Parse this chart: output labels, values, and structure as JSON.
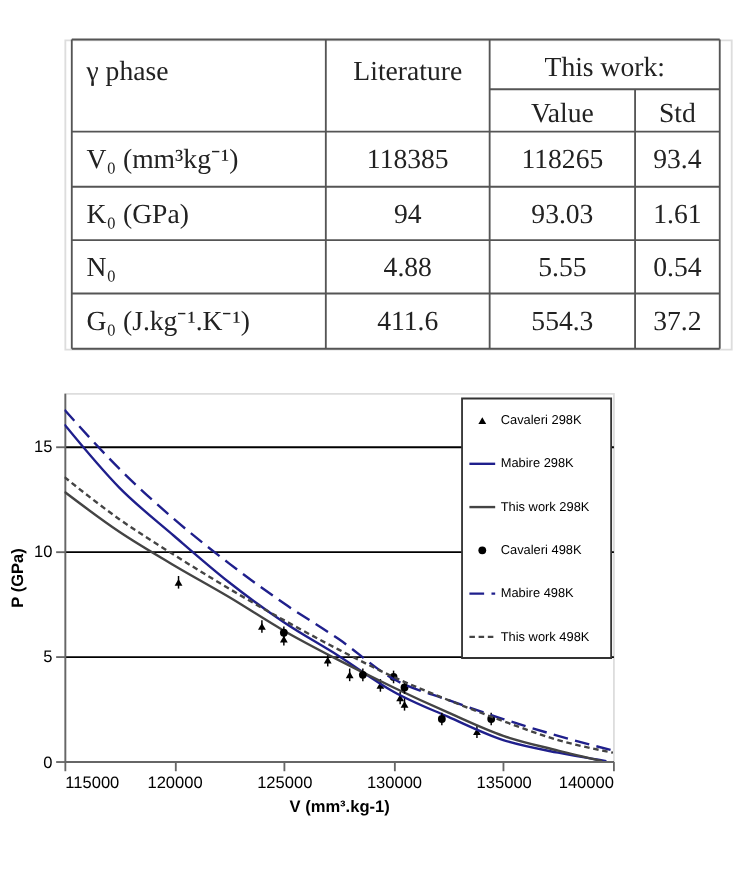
{
  "chart_data": [
    {
      "type": "other",
      "annotations": [
        "γ phase",
        "Literature",
        "This work:",
        "Value",
        "Std",
        "V₀ (mm³kg⁻¹)",
        "118385",
        "118265",
        "93.4",
        "K₀ (GPa)",
        "94",
        "93.03",
        "1.61",
        "N₀",
        "4.88",
        "5.55",
        "0.54",
        "G₀ (J.kg⁻¹.K⁻¹)",
        "411.6",
        "554.3",
        "37.2"
      ]
    },
    {
      "type": "line",
      "xlabel": "V (mm³.kg-1)",
      "ylabel": "P (GPa)",
      "xlim": [
        115000,
        140000
      ],
      "xticks": [
        115000,
        120000,
        125000,
        130000,
        135000,
        140000
      ],
      "ylim": [
        0,
        17.5
      ],
      "yticks": [
        0,
        5,
        10,
        15
      ],
      "grid": "y",
      "legend": "top right",
      "series": [
        {
          "type": "scatter",
          "name": "Cavaleri 298K",
          "color": "#000000",
          "marker": "triangle",
          "x": [
            120200,
            124000,
            125000,
            127000,
            128000,
            129400,
            130300,
            130500,
            133800
          ],
          "values": [
            8.5,
            6.4,
            5.8,
            4.8,
            4.1,
            3.6,
            3.0,
            2.7,
            1.4
          ],
          "errors": [
            0.3,
            0.3,
            0.3,
            0.3,
            0.3,
            0.3,
            0.3,
            0.3,
            0.3
          ]
        },
        {
          "type": "line",
          "name": "Mabire 298K",
          "color": "#1f1f8c",
          "line_style": "solid",
          "x": [
            115000,
            117500,
            120000,
            122500,
            125000,
            127500,
            130000,
            132500,
            135000,
            137500,
            139700
          ],
          "values": [
            16.0,
            13.0,
            10.7,
            8.5,
            6.6,
            5.0,
            3.3,
            2.1,
            1.0,
            0.4,
            0
          ]
        },
        {
          "type": "line",
          "name": "This work 298K",
          "color": "#444444",
          "line_style": "solid",
          "x": [
            115000,
            117500,
            120000,
            122500,
            125000,
            127500,
            130000,
            132500,
            135000,
            137500,
            139500
          ],
          "values": [
            12.8,
            10.9,
            9.3,
            7.8,
            6.2,
            4.8,
            3.5,
            2.3,
            1.2,
            0.5,
            0
          ]
        },
        {
          "type": "scatter",
          "name": "Cavaleri 498K",
          "color": "#000000",
          "marker": "circle",
          "x": [
            125000,
            128600,
            130000,
            130500,
            132200,
            134450
          ],
          "values": [
            6.1,
            4.1,
            4.0,
            3.5,
            2.0,
            2.0
          ],
          "errors": [
            0.3,
            0.3,
            0.3,
            0.3,
            0.3,
            0.3
          ]
        },
        {
          "type": "line",
          "name": "Mabire 498K",
          "color": "#1f1f8c",
          "line_style": "dashed",
          "x": [
            115000,
            117500,
            120000,
            122500,
            125000,
            127500,
            130000,
            132500,
            135000,
            137500,
            140000
          ],
          "values": [
            16.7,
            13.9,
            11.5,
            9.4,
            7.5,
            5.8,
            3.9,
            2.9,
            2.0,
            1.2,
            0.5
          ]
        },
        {
          "type": "line",
          "name": "This work 498K",
          "color": "#444444",
          "line_style": "dotted",
          "x": [
            115000,
            117500,
            120000,
            122500,
            125000,
            127500,
            130000,
            132500,
            135000,
            137500,
            140000
          ],
          "values": [
            13.5,
            11.5,
            9.8,
            8.2,
            6.7,
            5.3,
            4.0,
            2.9,
            1.9,
            1.0,
            0.4
          ]
        }
      ]
    }
  ]
}
